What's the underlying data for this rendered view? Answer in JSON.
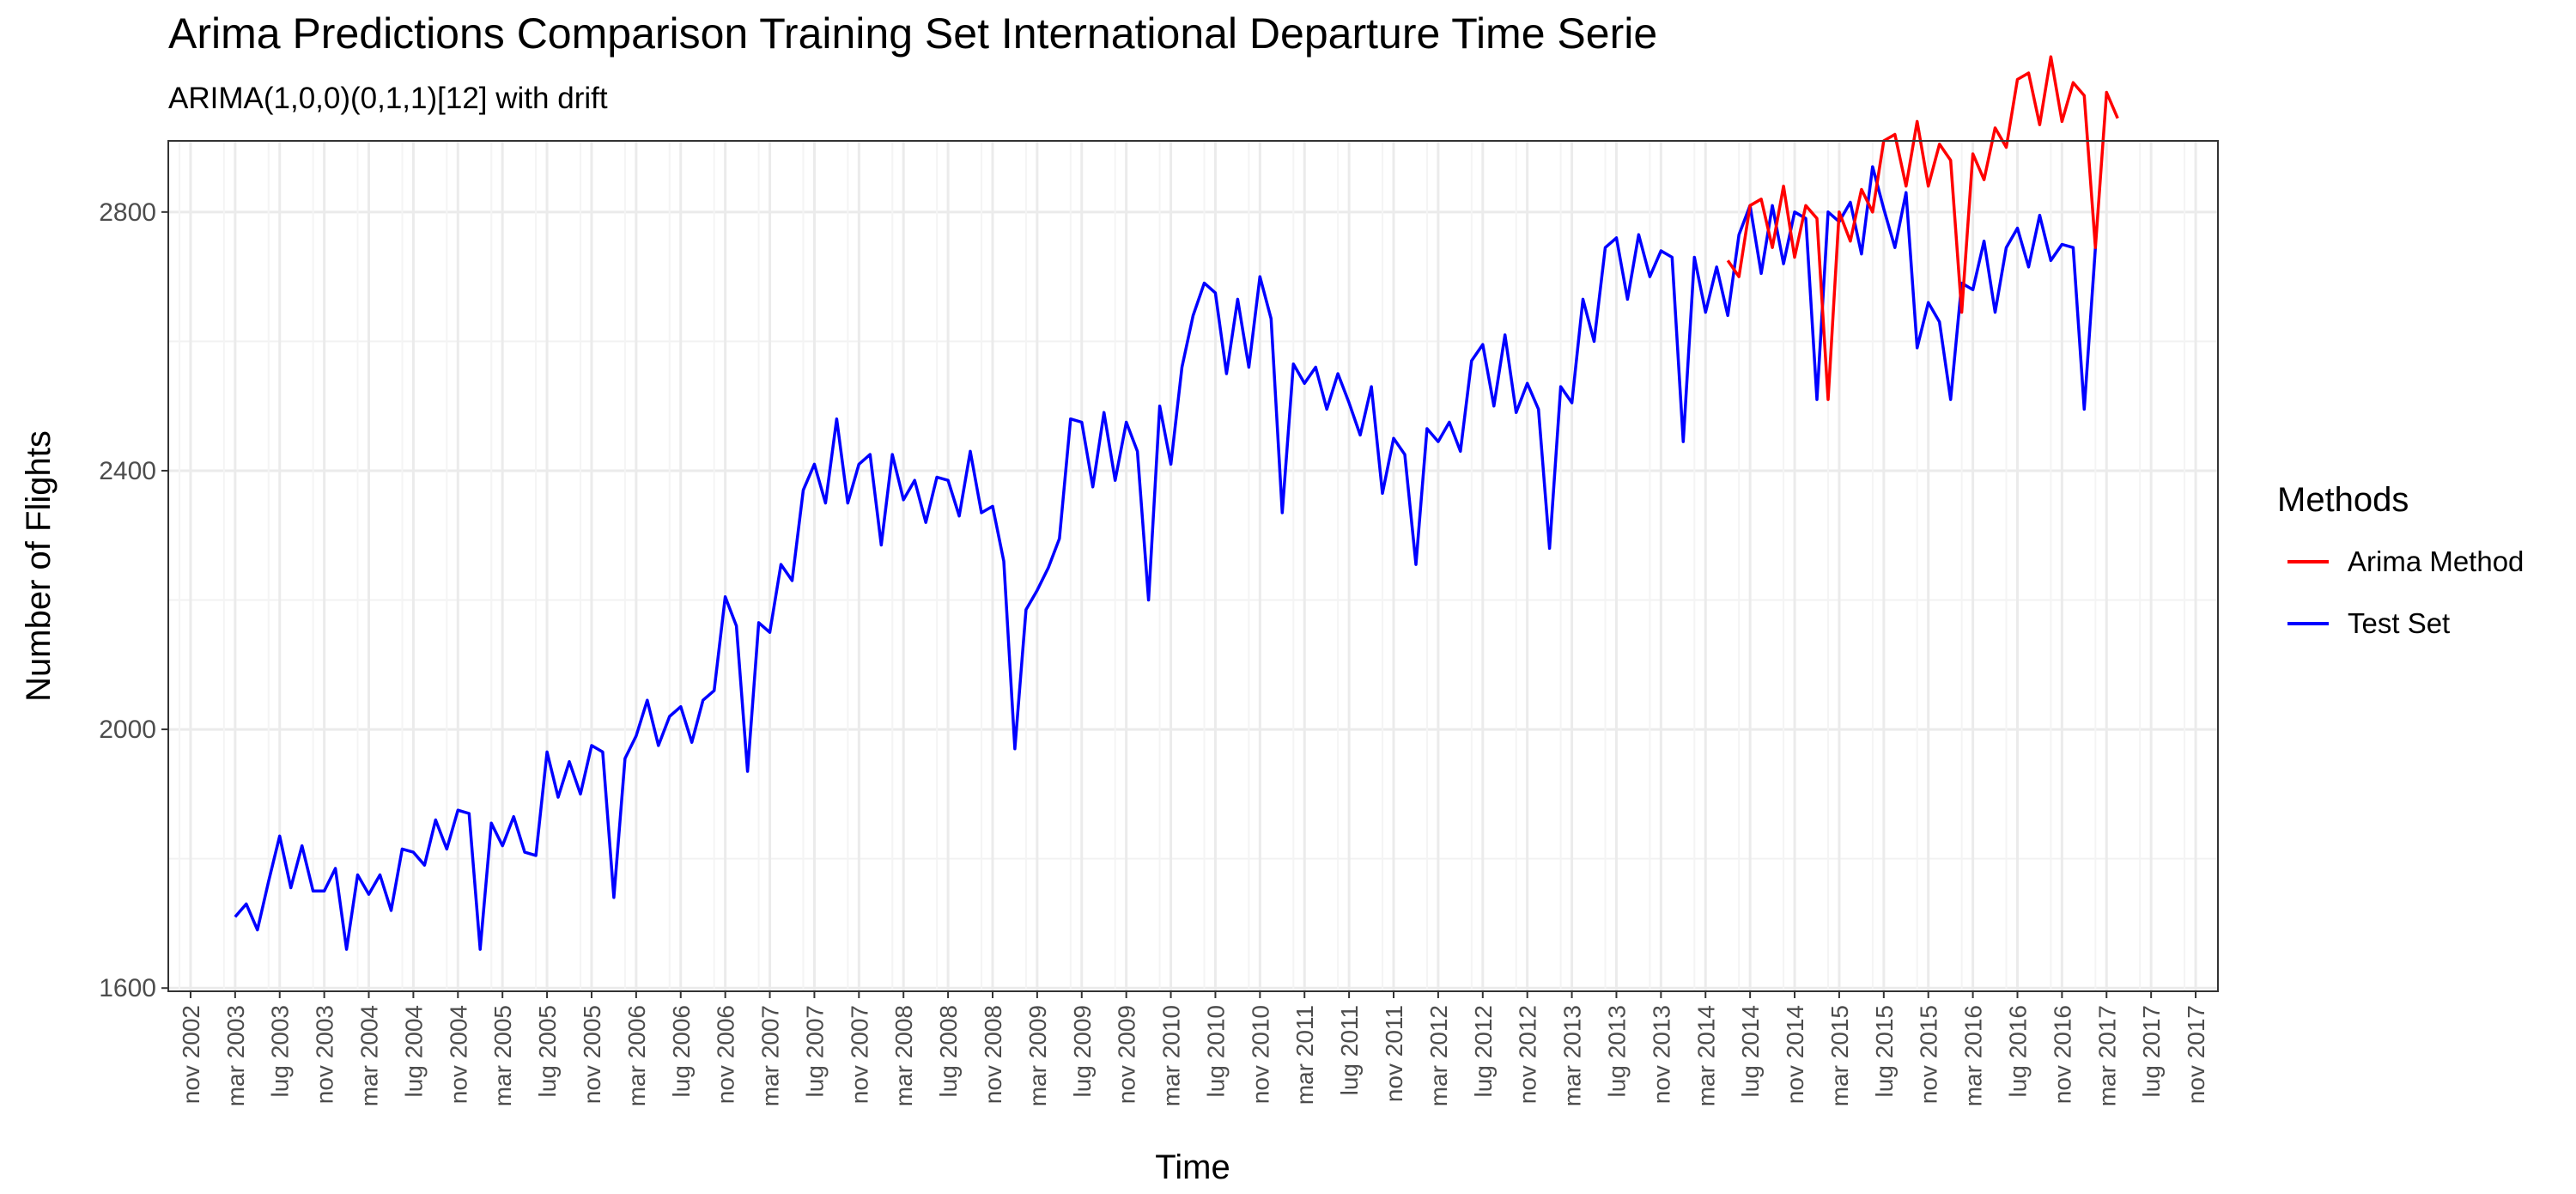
{
  "chart_data": {
    "type": "line",
    "title": "Arima Predictions Comparison Training Set International Departure Time Serie",
    "subtitle": "ARIMA(1,0,0)(0,1,1)[12] with drift",
    "xlabel": "Time",
    "ylabel": "Number of Flights",
    "xlim": [
      "2002-09",
      "2018-01"
    ],
    "ylim": [
      1595,
      2910
    ],
    "y_ticks": [
      1600,
      2000,
      2400,
      2800
    ],
    "x_tick_labels": [
      "nov 2002",
      "mar 2003",
      "lug 2003",
      "nov 2003",
      "mar 2004",
      "lug 2004",
      "nov 2004",
      "mar 2005",
      "lug 2005",
      "nov 2005",
      "mar 2006",
      "lug 2006",
      "nov 2006",
      "mar 2007",
      "lug 2007",
      "nov 2007",
      "mar 2008",
      "lug 2008",
      "nov 2008",
      "mar 2009",
      "lug 2009",
      "nov 2009",
      "mar 2010",
      "lug 2010",
      "nov 2010",
      "mar 2011",
      "lug 2011",
      "nov 2011",
      "mar 2012",
      "lug 2012",
      "nov 2012",
      "mar 2013",
      "lug 2013",
      "nov 2013",
      "mar 2014",
      "lug 2014",
      "nov 2014",
      "mar 2015",
      "lug 2015",
      "nov 2015",
      "mar 2016",
      "lug 2016",
      "nov 2016",
      "mar 2017",
      "lug 2017",
      "nov 2017"
    ],
    "x_tick_dates": [
      "2002-11",
      "2003-03",
      "2003-07",
      "2003-11",
      "2004-03",
      "2004-07",
      "2004-11",
      "2005-03",
      "2005-07",
      "2005-11",
      "2006-03",
      "2006-07",
      "2006-11",
      "2007-03",
      "2007-07",
      "2007-11",
      "2008-03",
      "2008-07",
      "2008-11",
      "2009-03",
      "2009-07",
      "2009-11",
      "2010-03",
      "2010-07",
      "2010-11",
      "2011-03",
      "2011-07",
      "2011-11",
      "2012-03",
      "2012-07",
      "2012-11",
      "2013-03",
      "2013-07",
      "2013-11",
      "2014-03",
      "2014-07",
      "2014-11",
      "2015-03",
      "2015-07",
      "2015-11",
      "2016-03",
      "2016-07",
      "2016-11",
      "2017-03",
      "2017-07",
      "2017-11"
    ],
    "grid": true,
    "legend": {
      "title": "Methods",
      "position": "right"
    },
    "series": [
      {
        "name": "Arima Method",
        "color": "#ff0000",
        "x_start": "2014-05",
        "values": [
          2725,
          2700,
          2810,
          2820,
          2745,
          2840,
          2730,
          2810,
          2790,
          2510,
          2800,
          2755,
          2835,
          2800,
          2910,
          2920,
          2840,
          2940,
          2840,
          2905,
          2880,
          2645,
          2890,
          2850,
          2930,
          2900,
          3005,
          3015,
          2935,
          3040,
          2940,
          3000,
          2980,
          2745,
          2985,
          2945
        ]
      },
      {
        "name": "Test Set",
        "color": "#0000ff",
        "x_start": "2003-03",
        "values": [
          1710,
          1730,
          1690,
          1765,
          1835,
          1755,
          1820,
          1750,
          1750,
          1785,
          1660,
          1775,
          1745,
          1775,
          1720,
          1815,
          1810,
          1790,
          1860,
          1815,
          1875,
          1870,
          1660,
          1855,
          1820,
          1865,
          1810,
          1805,
          1965,
          1895,
          1950,
          1900,
          1975,
          1965,
          1740,
          1955,
          1990,
          2045,
          1975,
          2020,
          2035,
          1980,
          2045,
          2060,
          2205,
          2160,
          1935,
          2165,
          2150,
          2255,
          2230,
          2370,
          2410,
          2350,
          2480,
          2350,
          2410,
          2425,
          2285,
          2425,
          2355,
          2385,
          2320,
          2390,
          2385,
          2330,
          2430,
          2335,
          2345,
          2260,
          1970,
          2185,
          2215,
          2250,
          2295,
          2480,
          2475,
          2375,
          2490,
          2385,
          2475,
          2430,
          2200,
          2500,
          2410,
          2560,
          2640,
          2690,
          2675,
          2550,
          2665,
          2560,
          2700,
          2635,
          2335,
          2565,
          2535,
          2560,
          2495,
          2550,
          2505,
          2455,
          2530,
          2365,
          2450,
          2425,
          2255,
          2465,
          2445,
          2475,
          2430,
          2570,
          2595,
          2500,
          2610,
          2490,
          2535,
          2495,
          2280,
          2530,
          2505,
          2665,
          2600,
          2745,
          2760,
          2665,
          2765,
          2700,
          2740,
          2730,
          2445,
          2730,
          2645,
          2715,
          2640,
          2765,
          2810,
          2705,
          2810,
          2720,
          2800,
          2790,
          2510,
          2800,
          2785,
          2815,
          2735,
          2870,
          2805,
          2745,
          2830,
          2590,
          2660,
          2630,
          2510,
          2690,
          2680,
          2755,
          2645,
          2745,
          2775,
          2715,
          2795,
          2725,
          2750,
          2745,
          2495,
          2745
        ]
      }
    ]
  }
}
